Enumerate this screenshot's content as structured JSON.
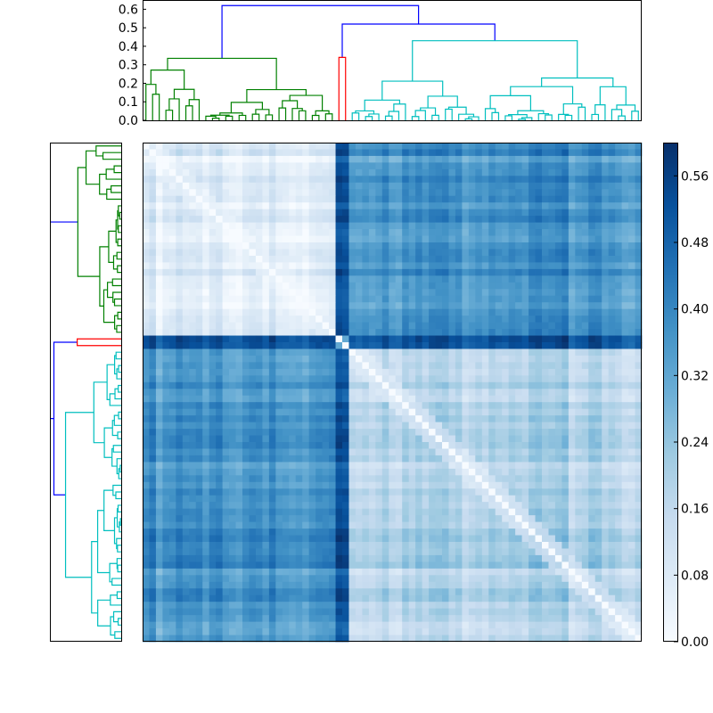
{
  "chart_data": {
    "type": "heatmap",
    "title": "",
    "xlabel": "",
    "ylabel": "",
    "colormap": "Blues",
    "colormap_stops": [
      "#f7fbff",
      "#deebf7",
      "#c6dbef",
      "#9ecae1",
      "#6baed6",
      "#4292c6",
      "#2171b5",
      "#08519c",
      "#08306b"
    ],
    "matrix_size": 75,
    "color_range": [
      0.0,
      0.6
    ],
    "colorbar_ticks": [
      "0.00",
      "0.08",
      "0.16",
      "0.24",
      "0.32",
      "0.40",
      "0.48",
      "0.56"
    ],
    "colorbar_tick_values": [
      0.0,
      0.08,
      0.16,
      0.24,
      0.32,
      0.4,
      0.48,
      0.56
    ],
    "dendrogram_axis": {
      "ticks": [
        "0.0",
        "0.1",
        "0.2",
        "0.3",
        "0.4",
        "0.5",
        "0.6"
      ],
      "tick_values": [
        0.0,
        0.1,
        0.2,
        0.3,
        0.4,
        0.5,
        0.6
      ],
      "ylim": [
        0.0,
        0.65
      ]
    },
    "link_colors": {
      "green": "#008000",
      "red": "#ff0000",
      "cyan": "#00bfbf",
      "root": "#0000ff"
    },
    "clusters": [
      {
        "color": "green",
        "size": 29,
        "height": 0.335
      },
      {
        "color": "red",
        "size": 2,
        "height": 0.34
      },
      {
        "color": "cyan",
        "size": 44,
        "height": 0.43
      }
    ],
    "root_links": [
      {
        "joins": [
          "red",
          "cyan"
        ],
        "height": 0.52
      },
      {
        "joins": [
          "green",
          "red+cyan"
        ],
        "height": 0.62
      }
    ],
    "block_means": {
      "within_green": 0.06,
      "within_cyan": 0.18,
      "green_cyan": 0.36,
      "with_red": 0.5
    }
  }
}
